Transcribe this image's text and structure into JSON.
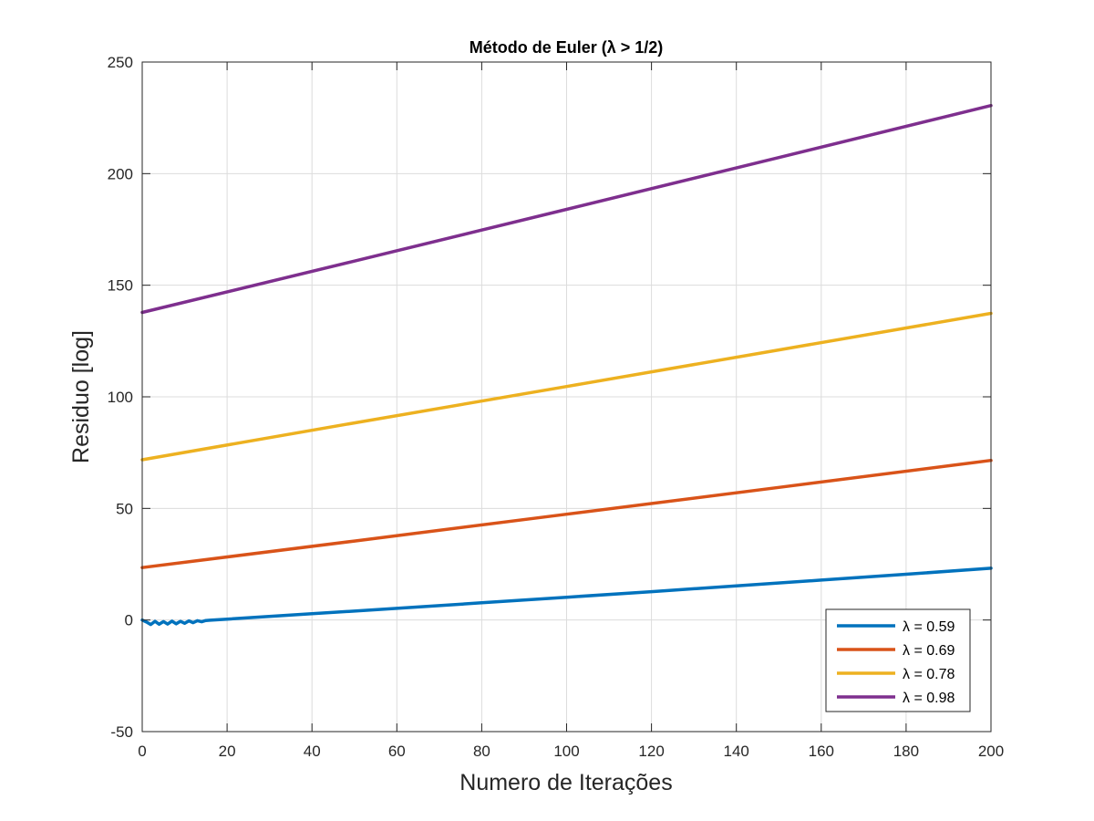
{
  "chart_data": {
    "type": "line",
    "title": "Método de Euler (λ > 1/2)",
    "xlabel": "Numero de Iterações",
    "ylabel": "Residuo [log]",
    "xlim": [
      0,
      200
    ],
    "ylim": [
      -50,
      250
    ],
    "xticks": [
      "0",
      "20",
      "40",
      "60",
      "80",
      "100",
      "120",
      "140",
      "160",
      "180",
      "200"
    ],
    "yticks": [
      "-50",
      "0",
      "50",
      "100",
      "150",
      "200",
      "250"
    ],
    "grid": true,
    "legend_position": "bottom-right",
    "series": [
      {
        "name": "λ = 0.59",
        "color": "#0072BD",
        "x": [
          0,
          1,
          2,
          3,
          4,
          5,
          6,
          7,
          8,
          9,
          10,
          11,
          12,
          13,
          14,
          15,
          16,
          20,
          40,
          60,
          80,
          100,
          120,
          140,
          160,
          180,
          200
        ],
        "y": [
          0,
          -0.9,
          -2.0,
          -0.6,
          -1.9,
          -0.7,
          -1.8,
          -0.5,
          -1.7,
          -0.6,
          -1.5,
          -0.4,
          -1.2,
          -0.3,
          -0.8,
          -0.2,
          -0.1,
          0.4,
          2.8,
          5.2,
          7.7,
          10.2,
          12.7,
          15.3,
          17.9,
          20.5,
          23.2
        ]
      },
      {
        "name": "λ = 0.69",
        "color": "#D95319",
        "x": [
          0,
          50,
          100,
          150,
          200
        ],
        "y": [
          23.5,
          35.4,
          47.4,
          59.4,
          71.5
        ]
      },
      {
        "name": "λ = 0.78",
        "color": "#EDB120",
        "x": [
          0,
          50,
          100,
          150,
          200
        ],
        "y": [
          71.8,
          88.3,
          104.6,
          121.0,
          137.4
        ]
      },
      {
        "name": "λ = 0.98",
        "color": "#7E2F8E",
        "x": [
          0,
          50,
          100,
          150,
          200
        ],
        "y": [
          137.8,
          160.8,
          184.0,
          207.2,
          230.5
        ]
      }
    ]
  }
}
